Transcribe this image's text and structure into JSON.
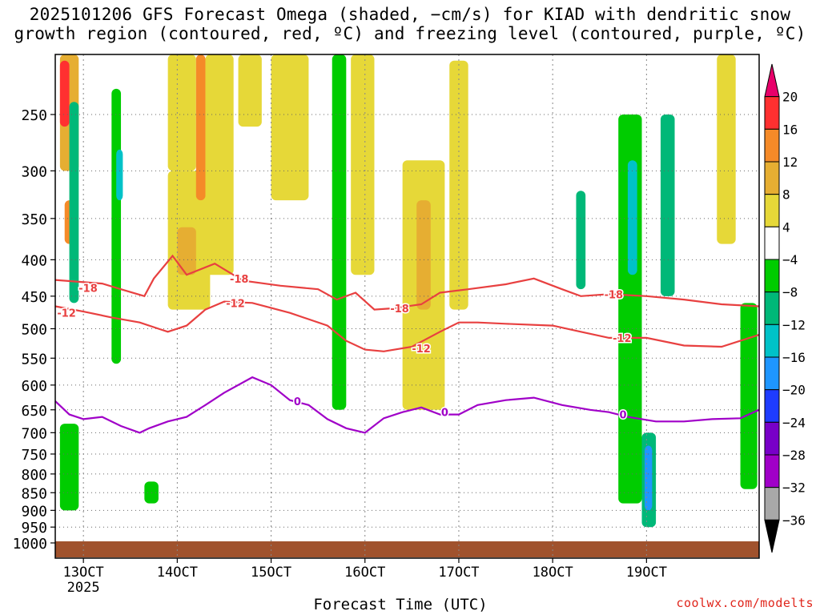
{
  "title": {
    "line1": "2025101206 GFS Forecast Omega (shaded, −cm/s) for KIAD with dendritic snow",
    "line2": "growth region (contoured, red, ºC) and freezing level (contoured, purple, ºC)"
  },
  "credit": "coolwx.com/modelts",
  "chart_data": {
    "type": "heatmap",
    "title": "2025101206 GFS Forecast Omega (shaded, −cm/s) for KIAD with dendritic snow growth region (contoured, red, ºC) and freezing level (contoured, purple, ºC)",
    "xlabel": "Forecast Time (UTC)",
    "ylabel": "",
    "xlim": [
      -3,
      72
    ],
    "ylim": [
      1000,
      200
    ],
    "x_unit": "hours from 13OCT 00Z (approx.)",
    "x_ticks": [
      {
        "label": "13OCT",
        "sub": "2025",
        "x": 0
      },
      {
        "label": "14OCT",
        "sub": "",
        "x": 10
      },
      {
        "label": "15OCT",
        "sub": "",
        "x": 20
      },
      {
        "label": "16OCT",
        "sub": "",
        "x": 30
      },
      {
        "label": "17OCT",
        "sub": "",
        "x": 40
      },
      {
        "label": "18OCT",
        "sub": "",
        "x": 50
      },
      {
        "label": "19OCT",
        "sub": "",
        "x": 60
      }
    ],
    "y_ticks": [
      250,
      300,
      350,
      400,
      450,
      500,
      550,
      600,
      650,
      700,
      750,
      800,
      850,
      900,
      950,
      1000
    ],
    "grid": true,
    "colorbar": {
      "labels": [
        "20",
        "16",
        "12",
        "8",
        "4",
        "−4",
        "−8",
        "−12",
        "−16",
        "−20",
        "−24",
        "−28",
        "−32",
        "−36"
      ],
      "colors": [
        "#e8006a",
        "#ff3030",
        "#f58a28",
        "#e6ae32",
        "#e6d838",
        "#ffffff",
        "#00cc00",
        "#00b878",
        "#00c2c8",
        "#1e96ff",
        "#1e3cff",
        "#7800c8",
        "#a000c8",
        "#a8a8a8",
        "#000000"
      ]
    },
    "omega_patches": [
      {
        "x0": -2.5,
        "x1": -0.5,
        "p0": 200,
        "p1": 300,
        "value": 8
      },
      {
        "x0": -2.5,
        "x1": -1.5,
        "p0": 210,
        "p1": 260,
        "value": 18
      },
      {
        "x0": -2.0,
        "x1": -1.0,
        "p0": 330,
        "p1": 380,
        "value": 14
      },
      {
        "x0": -1.5,
        "x1": -0.5,
        "p0": 240,
        "p1": 460,
        "value": -10
      },
      {
        "x0": -2.0,
        "x1": -1.0,
        "p0": 700,
        "p1": 820,
        "value": -16
      },
      {
        "x0": -2.5,
        "x1": -0.5,
        "p0": 680,
        "p1": 900,
        "value": -6
      },
      {
        "x0": 3.0,
        "x1": 4.0,
        "p0": 230,
        "p1": 560,
        "value": -6
      },
      {
        "x0": 3.5,
        "x1": 4.2,
        "p0": 280,
        "p1": 330,
        "value": -12
      },
      {
        "x0": 6.5,
        "x1": 8.0,
        "p0": 820,
        "p1": 880,
        "value": -6
      },
      {
        "x0": 9.0,
        "x1": 12.0,
        "p0": 200,
        "p1": 300,
        "value": 6
      },
      {
        "x0": 9.0,
        "x1": 13.5,
        "p0": 300,
        "p1": 470,
        "value": 6
      },
      {
        "x0": 10.0,
        "x1": 12.0,
        "p0": 360,
        "p1": 420,
        "value": 10
      },
      {
        "x0": 12.0,
        "x1": 13.0,
        "p0": 200,
        "p1": 330,
        "value": 15
      },
      {
        "x0": 13.0,
        "x1": 16.0,
        "p0": 200,
        "p1": 420,
        "value": 6
      },
      {
        "x0": 16.5,
        "x1": 19.0,
        "p0": 200,
        "p1": 260,
        "value": 6
      },
      {
        "x0": 20.0,
        "x1": 24.0,
        "p0": 200,
        "p1": 330,
        "value": 5
      },
      {
        "x0": 26.5,
        "x1": 28.0,
        "p0": 200,
        "p1": 650,
        "value": -6
      },
      {
        "x0": 28.5,
        "x1": 31.0,
        "p0": 200,
        "p1": 420,
        "value": 5
      },
      {
        "x0": 34.0,
        "x1": 38.5,
        "p0": 290,
        "p1": 650,
        "value": 6
      },
      {
        "x0": 35.5,
        "x1": 37.0,
        "p0": 330,
        "p1": 470,
        "value": 10
      },
      {
        "x0": 39.0,
        "x1": 41.0,
        "p0": 210,
        "p1": 470,
        "value": 6
      },
      {
        "x0": 52.5,
        "x1": 53.5,
        "p0": 320,
        "p1": 440,
        "value": -8
      },
      {
        "x0": 57.0,
        "x1": 59.5,
        "p0": 250,
        "p1": 880,
        "value": -6
      },
      {
        "x0": 58.0,
        "x1": 59.0,
        "p0": 290,
        "p1": 420,
        "value": -14
      },
      {
        "x0": 59.5,
        "x1": 61.0,
        "p0": 700,
        "p1": 950,
        "value": -8
      },
      {
        "x0": 59.8,
        "x1": 60.6,
        "p0": 730,
        "p1": 900,
        "value": -18
      },
      {
        "x0": 61.5,
        "x1": 63.0,
        "p0": 250,
        "p1": 450,
        "value": -8
      },
      {
        "x0": 67.5,
        "x1": 69.5,
        "p0": 200,
        "p1": 380,
        "value": 6
      },
      {
        "x0": 70.0,
        "x1": 71.8,
        "p0": 460,
        "p1": 840,
        "value": -6
      }
    ],
    "series": [
      {
        "name": "-18",
        "color": "#e84040",
        "x": [
          -3,
          2,
          4,
          6.5,
          7.5,
          9.5,
          11,
          14,
          17,
          21,
          25,
          27,
          29,
          31,
          33,
          36,
          38,
          41,
          45,
          48,
          51,
          53,
          56,
          60,
          64,
          68,
          72
        ],
        "p": [
          427,
          432,
          440,
          450,
          425,
          395,
          420,
          405,
          428,
          435,
          440,
          455,
          445,
          470,
          468,
          462,
          445,
          440,
          433,
          425,
          440,
          450,
          447,
          450,
          455,
          462,
          465
        ]
      },
      {
        "name": "-12",
        "color": "#e84040",
        "x": [
          -3,
          0,
          3,
          6,
          8,
          9,
          11,
          13,
          15,
          18,
          22,
          26,
          28,
          30,
          32,
          35,
          38,
          40,
          42,
          45,
          50,
          53,
          56,
          60,
          64,
          68,
          72
        ],
        "p": [
          465,
          473,
          482,
          490,
          500,
          505,
          495,
          470,
          458,
          460,
          475,
          495,
          520,
          535,
          538,
          530,
          505,
          490,
          490,
          492,
          495,
          505,
          515,
          515,
          528,
          530,
          510
        ]
      },
      {
        "name": "0",
        "color": "#a000c8",
        "x": [
          -3,
          -1.5,
          0,
          2,
          4,
          6,
          7,
          9,
          11,
          13,
          15,
          18,
          20,
          22,
          24,
          26,
          28,
          30,
          32,
          34,
          36,
          38,
          40,
          42,
          45,
          48,
          51,
          54,
          56,
          58,
          61,
          64,
          67,
          70,
          72
        ],
        "p": [
          632,
          660,
          670,
          665,
          685,
          700,
          690,
          675,
          665,
          640,
          615,
          585,
          600,
          630,
          640,
          670,
          690,
          700,
          668,
          655,
          645,
          660,
          660,
          640,
          630,
          625,
          640,
          650,
          655,
          665,
          675,
          675,
          670,
          668,
          650
        ]
      }
    ],
    "contour_labels": [
      {
        "text": "-18",
        "x": 0.5,
        "p": 438
      },
      {
        "text": "-18",
        "x": 16.6,
        "p": 425
      },
      {
        "text": "-18",
        "x": 33.7,
        "p": 468
      },
      {
        "text": "-18",
        "x": 56.5,
        "p": 447
      },
      {
        "text": "-12",
        "x": -1.8,
        "p": 475
      },
      {
        "text": "-12",
        "x": 16.2,
        "p": 460
      },
      {
        "text": "-12",
        "x": 36.0,
        "p": 533
      },
      {
        "text": "-12",
        "x": 57.4,
        "p": 515
      },
      {
        "text": "0",
        "x": 22.8,
        "p": 632
      },
      {
        "text": "0",
        "x": 38.5,
        "p": 655
      },
      {
        "text": "0",
        "x": 57.5,
        "p": 660
      }
    ]
  }
}
